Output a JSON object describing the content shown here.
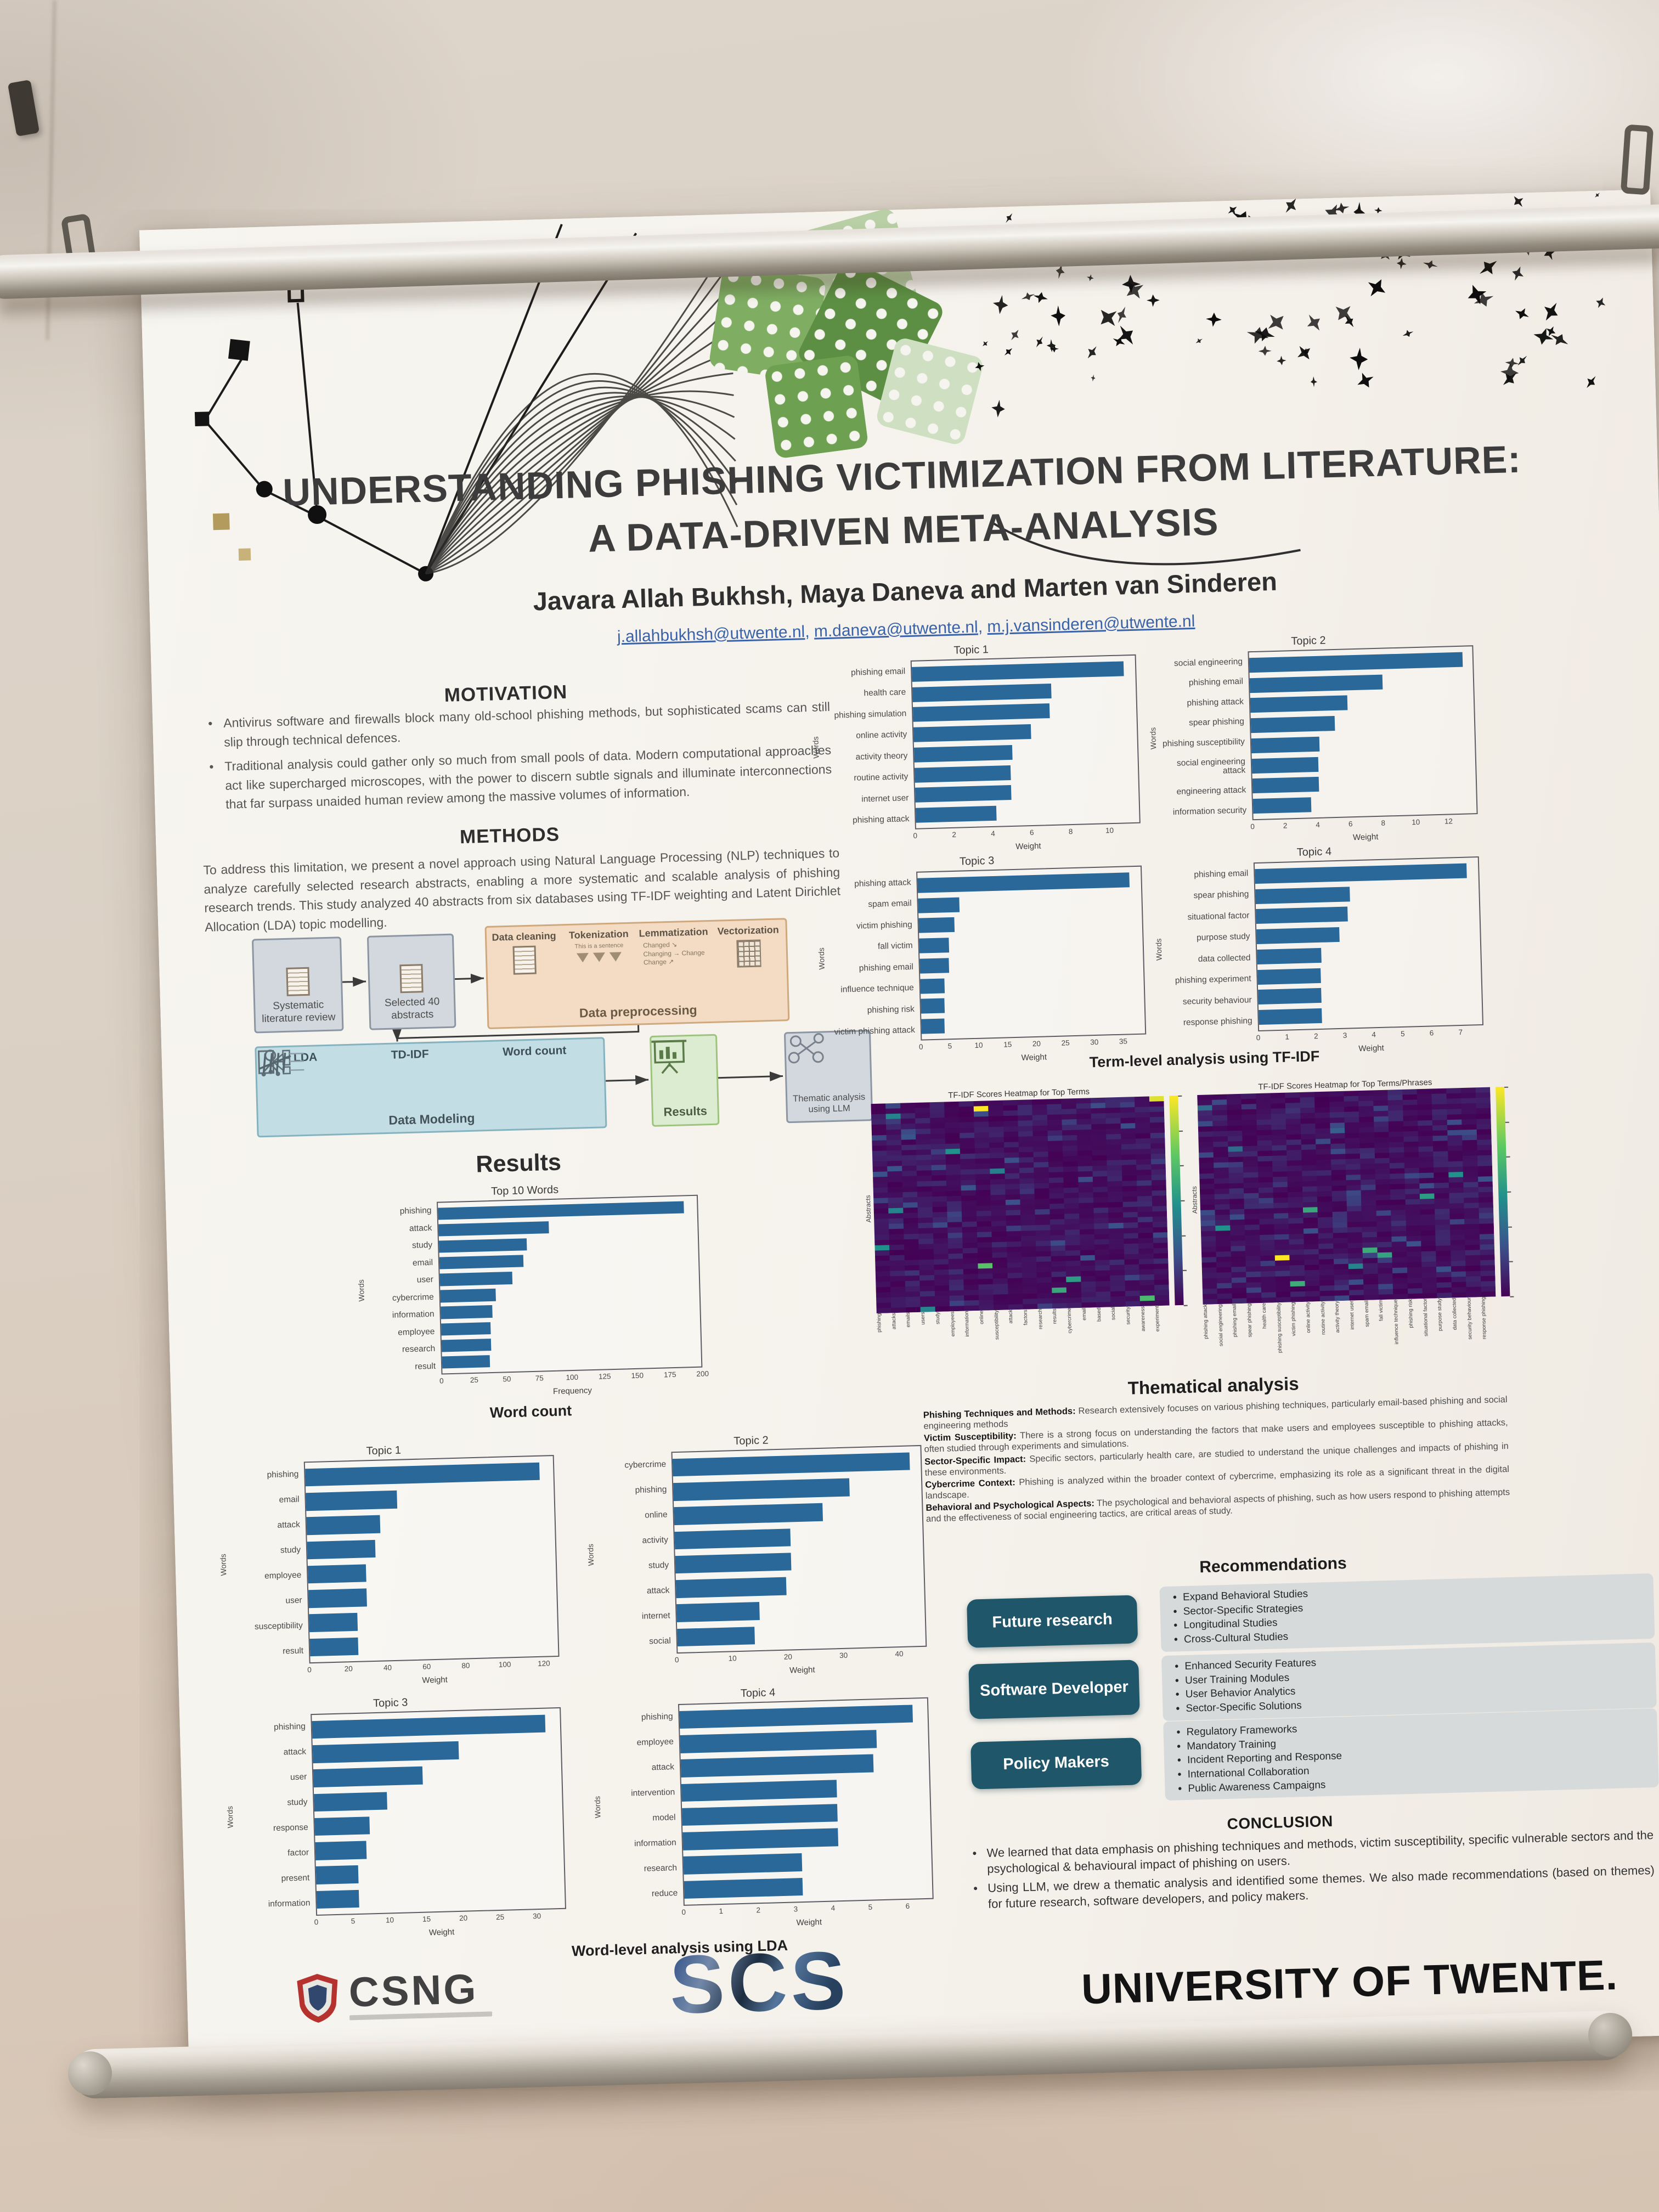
{
  "poster": {
    "title_line1": "UNDERSTANDING PHISHING VICTIMIZATION FROM LITERATURE:",
    "title_line2": "A DATA-DRIVEN META-ANALYSIS",
    "authors": "Javara Allah Bukhsh, Maya Daneva and Marten van Sinderen",
    "emails": [
      "j.allahbukhsh@utwente.nl",
      "m.daneva@utwente.nl",
      "m.j.vansinderen@utwente.nl"
    ]
  },
  "motivation": {
    "heading": "MOTIVATION",
    "bullets": [
      "Antivirus software and firewalls block many old-school phishing methods, but sophisticated scams can still slip through technical defences.",
      "Traditional analysis could gather only so much from small pools of data. Modern computational approaches act like supercharged microscopes, with the power to discern subtle signals and illuminate interconnections that far surpass unaided human review among the massive volumes of information."
    ]
  },
  "methods": {
    "heading": "METHODS",
    "text": "To address this limitation, we present a novel approach using Natural Language Processing (NLP) techniques to analyze carefully selected research abstracts, enabling a more systematic and scalable analysis of phishing research trends. This study analyzed 40 abstracts from six databases using TF-IDF weighting and Latent Dirichlet Allocation (LDA) topic modelling."
  },
  "flow": {
    "row1": [
      {
        "label": "Systematic literature review"
      },
      {
        "label": "Selected 40 abstracts"
      }
    ],
    "preprocessing": {
      "label": "Data preprocessing",
      "steps": [
        "Data cleaning",
        "Tokenization",
        "Lemmatization",
        "Vectorization"
      ],
      "token_example": "This is a sentence",
      "lemma": [
        "Changed",
        "Changing",
        "Change"
      ],
      "lemma_result": "Change"
    },
    "modeling": {
      "label": "Data Modeling",
      "methods": [
        "LDA",
        "TD-IDF",
        "Word count"
      ]
    },
    "results_box": "Results",
    "thematic_box": "Thematic analysis using LLM"
  },
  "results_heading": "Results",
  "captions": {
    "term": "Term-level analysis using TF-IDF",
    "word": "Word-level analysis using LDA"
  },
  "chart_data": {
    "top10": {
      "type": "bar",
      "title": "Top 10 Words",
      "xlabel": "Frequency",
      "ylabel": "Words",
      "caption": "Word count",
      "xmax": 200,
      "xticks": [
        0,
        25,
        50,
        75,
        100,
        125,
        150,
        175,
        200
      ],
      "categories": [
        "phishing",
        "attack",
        "study",
        "email",
        "user",
        "cybercrime",
        "information",
        "employee",
        "research",
        "result"
      ],
      "values": [
        190,
        85,
        68,
        65,
        56,
        43,
        40,
        38,
        38,
        37
      ]
    },
    "tfidf1": {
      "type": "bar",
      "title": "Topic 1",
      "xlabel": "Weight",
      "ylabel": "Words",
      "xmax": 11.6,
      "xticks": [
        0,
        2,
        4,
        6,
        8,
        10
      ],
      "categories": [
        "phishing email",
        "health care",
        "phishing simulation",
        "online activity",
        "activity theory",
        "routine activity",
        "internet user",
        "phishing attack"
      ],
      "values": [
        11,
        7.2,
        7.1,
        6.1,
        5.1,
        5,
        5,
        4.2
      ]
    },
    "tfidf2": {
      "type": "bar",
      "title": "Topic 2",
      "xlabel": "Weight",
      "ylabel": "Words",
      "xmax": 13.8,
      "xticks": [
        0,
        2,
        4,
        6,
        8,
        10,
        12
      ],
      "categories": [
        "social engineering",
        "phishing email",
        "phishing attack",
        "spear phishing",
        "phishing susceptibility",
        "social engineering attack",
        "engineering attack",
        "information security"
      ],
      "values": [
        13.2,
        8.2,
        6,
        5.2,
        4.2,
        4.1,
        4.1,
        3.6
      ]
    },
    "tfidf3": {
      "type": "bar",
      "title": "Topic 3",
      "xlabel": "Weight",
      "ylabel": "Words",
      "xmax": 39,
      "xticks": [
        0,
        5,
        10,
        15,
        20,
        25,
        30,
        35
      ],
      "categories": [
        "phishing attack",
        "spam email",
        "victim phishing",
        "fall victim",
        "phishing email",
        "influence technique",
        "phishing risk",
        "victim phishing attack"
      ],
      "values": [
        37,
        7.2,
        6.2,
        5.2,
        5.1,
        4.2,
        4.1,
        4
      ]
    },
    "tfidf4": {
      "type": "bar",
      "title": "Topic 4",
      "xlabel": "Weight",
      "ylabel": "Words",
      "xmax": 7.8,
      "xticks": [
        0,
        1,
        2,
        3,
        4,
        5,
        6,
        7
      ],
      "categories": [
        "phishing email",
        "spear phishing",
        "situational factor",
        "purpose study",
        "data collected",
        "phishing experiment",
        "security behaviour",
        "response phishing"
      ],
      "values": [
        7.4,
        3.3,
        3.2,
        2.9,
        2.25,
        2.2,
        2.2,
        2.2
      ]
    },
    "lda1": {
      "type": "bar",
      "title": "Topic 1",
      "xlabel": "Weight",
      "ylabel": "Words",
      "xmax": 128,
      "xticks": [
        0,
        20,
        40,
        60,
        80,
        100,
        120
      ],
      "categories": [
        "phishing",
        "email",
        "attack",
        "study",
        "employee",
        "user",
        "susceptibility",
        "result"
      ],
      "values": [
        121,
        47,
        38,
        35,
        30,
        30,
        25,
        25
      ]
    },
    "lda2": {
      "type": "bar",
      "title": "Topic 2",
      "xlabel": "Weight",
      "ylabel": "Words",
      "xmax": 45,
      "xticks": [
        0,
        10,
        20,
        30,
        40
      ],
      "categories": [
        "cybercrime",
        "phishing",
        "online",
        "activity",
        "study",
        "attack",
        "internet",
        "social"
      ],
      "values": [
        43,
        32,
        27,
        21,
        21,
        20,
        15,
        14
      ]
    },
    "lda3": {
      "type": "bar",
      "title": "Topic 3",
      "xlabel": "Weight",
      "ylabel": "Words",
      "xmax": 34,
      "xticks": [
        0,
        5,
        10,
        15,
        20,
        25,
        30
      ],
      "categories": [
        "phishing",
        "attack",
        "user",
        "study",
        "response",
        "factor",
        "present",
        "information"
      ],
      "values": [
        32,
        20,
        15,
        10,
        7.5,
        7,
        5.8,
        5.8
      ]
    },
    "lda4": {
      "type": "bar",
      "title": "Topic 4",
      "xlabel": "Weight",
      "ylabel": "Words",
      "xmax": 6.7,
      "xticks": [
        0,
        1,
        2,
        3,
        4,
        5,
        6
      ],
      "categories": [
        "phishing",
        "employee",
        "attack",
        "intervention",
        "model",
        "information",
        "research",
        "reduce"
      ],
      "values": [
        6.3,
        5.3,
        5.2,
        4.2,
        4.2,
        4.2,
        3.2,
        3.2
      ]
    },
    "heatmap1": {
      "type": "heatmap",
      "title": "TF-IDF Scores Heatmap for Top Terms",
      "ylabel": "Abstracts",
      "rows": 40,
      "cols": 20,
      "seed": 7,
      "terms": [
        "phishing",
        "attacks",
        "emails",
        "users",
        "study",
        "employees",
        "information",
        "online",
        "susceptibility",
        "attack",
        "factors",
        "research",
        "results",
        "cybercrime",
        "email",
        "based",
        "social",
        "security",
        "awareness",
        "experiment"
      ],
      "highlights": [
        [
          1,
          7,
          1.0
        ],
        [
          0,
          19,
          0.95
        ],
        [
          2,
          1,
          0.45
        ],
        [
          9,
          5,
          0.5
        ],
        [
          13,
          8,
          0.42
        ],
        [
          20,
          1,
          0.45
        ],
        [
          27,
          0,
          0.5
        ],
        [
          31,
          7,
          0.72
        ],
        [
          34,
          13,
          0.55
        ],
        [
          36,
          12,
          0.6
        ],
        [
          38,
          18,
          0.68
        ],
        [
          39,
          3,
          0.45
        ]
      ]
    },
    "heatmap2": {
      "type": "heatmap",
      "title": "TF-IDF Scores Heatmap for Top Terms/Phrases",
      "ylabel": "Abstracts",
      "rows": 40,
      "cols": 20,
      "seed": 21,
      "terms": [
        "phishing attack",
        "social engineering",
        "phishing email",
        "spear phishing",
        "health care",
        "phishing susceptibility",
        "victim phishing",
        "online activity",
        "routine activity",
        "activity theory",
        "internet user",
        "spam email",
        "fall victim",
        "influence technique",
        "phishing risk",
        "situational factor",
        "purpose study",
        "data collected",
        "security behaviour",
        "response phishing"
      ],
      "highlights": [
        [
          2,
          0,
          0.35
        ],
        [
          7,
          9,
          0.3
        ],
        [
          10,
          2,
          0.35
        ],
        [
          16,
          17,
          0.5
        ],
        [
          20,
          15,
          0.55
        ],
        [
          22,
          7,
          0.6
        ],
        [
          25,
          1,
          0.5
        ],
        [
          30,
          11,
          0.62
        ],
        [
          31,
          5,
          1.0
        ],
        [
          31,
          12,
          0.58
        ],
        [
          33,
          10,
          0.45
        ],
        [
          36,
          6,
          0.62
        ]
      ]
    }
  },
  "thematic": {
    "heading": "Thematical analysis",
    "items": [
      {
        "lead": "Phishing Techniques and Methods:",
        "text": " Research extensively focuses on various phishing techniques, particularly email-based phishing and social engineering methods"
      },
      {
        "lead": "Victim Susceptibility:",
        "text": " There is a strong focus on understanding the factors that make users and employees susceptible to phishing attacks, often studied through experiments and simulations."
      },
      {
        "lead": "Sector-Specific Impact:",
        "text": " Specific sectors, particularly health care, are studied to understand the unique challenges and impacts of phishing in these environments."
      },
      {
        "lead": "Cybercrime Context:",
        "text": " Phishing is analyzed within the broader context of cybercrime, emphasizing its role as a significant threat in the digital landscape."
      },
      {
        "lead": "Behavioral and Psychological Aspects:",
        "text": " The psychological and behavioral aspects of phishing, such as how users respond to phishing attempts and the effectiveness of social engineering tactics, are critical areas of study."
      }
    ]
  },
  "recommendations": {
    "heading": "Recommendations",
    "rows": [
      {
        "label": "Future research",
        "bullets": [
          "Expand Behavioral Studies",
          "Sector-Specific Strategies",
          "Longitudinal Studies",
          "Cross-Cultural Studies"
        ]
      },
      {
        "label": "Software Developer",
        "bullets": [
          "Enhanced Security Features",
          "User Training Modules",
          "User Behavior Analytics",
          "Sector-Specific Solutions"
        ]
      },
      {
        "label": "Policy Makers",
        "bullets": [
          "Regulatory Frameworks",
          "Mandatory Training",
          "Incident Reporting and Response",
          "International Collaboration",
          "Public Awareness Campaigns"
        ]
      }
    ]
  },
  "conclusion": {
    "heading": "CONCLUSION",
    "bullets": [
      "We learned that data emphasis on phishing techniques and methods, victim susceptibility, specific vulnerable sectors and the psychological & behavioural impact of phishing on users.",
      "Using LLM, we drew a thematic analysis and identified some themes. We also made recommendations (based on themes) for future research, software developers, and policy makers."
    ]
  },
  "footer": {
    "csng": "CSNG",
    "scs": "SCS",
    "university": "UNIVERSITY OF TWENTE."
  }
}
